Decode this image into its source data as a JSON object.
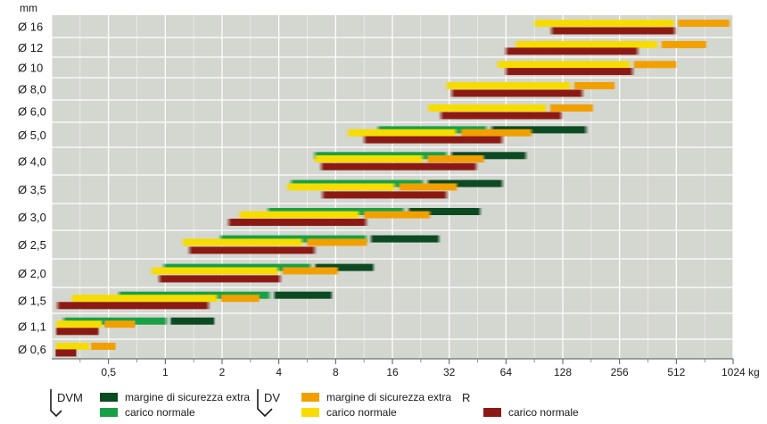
{
  "chart_data": {
    "type": "bar",
    "orientation": "horizontal-range",
    "y_unit_label": "mm",
    "x_unit_label": "kg",
    "x_scale": "log2",
    "xlim": [
      0.25,
      1024
    ],
    "x_ticks": [
      {
        "value": 0.5,
        "label": "0,5"
      },
      {
        "value": 1,
        "label": "1"
      },
      {
        "value": 2,
        "label": "2"
      },
      {
        "value": 4,
        "label": "4"
      },
      {
        "value": 8,
        "label": "8"
      },
      {
        "value": 16,
        "label": "16"
      },
      {
        "value": 32,
        "label": "32"
      },
      {
        "value": 64,
        "label": "64"
      },
      {
        "value": 128,
        "label": "128"
      },
      {
        "value": 256,
        "label": "256"
      },
      {
        "value": 512,
        "label": "512"
      },
      {
        "value": 1024,
        "label": "1024 kg"
      }
    ],
    "grid": true,
    "categories": [
      "Ø 16",
      "Ø 12",
      "Ø 10",
      "Ø 8,0",
      "Ø 6,0",
      "Ø 5,0",
      "Ø 4,0",
      "Ø 3,5",
      "Ø 3,0",
      "Ø 2,5",
      "Ø 2,0",
      "Ø 1,5",
      "Ø 1,1",
      "Ø 0,6"
    ],
    "series": [
      {
        "code": "DVM",
        "role": "carico normale",
        "color": "#18a046",
        "ranges": [
          null,
          null,
          null,
          null,
          null,
          [
            13,
            52
          ],
          [
            6,
            32
          ],
          [
            4.5,
            24
          ],
          [
            3.4,
            19
          ],
          [
            1.9,
            12
          ],
          [
            0.95,
            6.1
          ],
          [
            0.55,
            3.7
          ],
          [
            0.28,
            1.05
          ],
          null
        ]
      },
      {
        "code": "DVM",
        "role": "margine di sicurezza extra",
        "color": "#0c4a22",
        "ranges": [
          null,
          null,
          null,
          null,
          null,
          [
            52,
            176
          ],
          [
            32,
            84
          ],
          [
            24,
            63
          ],
          [
            19,
            48
          ],
          [
            12,
            29
          ],
          [
            6.1,
            13
          ],
          [
            3.7,
            7.8
          ],
          [
            1.05,
            1.85
          ],
          null
        ]
      },
      {
        "code": "DV",
        "role": "carico normale",
        "color": "#f6dc00",
        "ranges": [
          [
            88,
            512
          ],
          [
            70,
            420
          ],
          [
            56,
            300
          ],
          [
            30,
            145
          ],
          [
            24,
            108
          ],
          [
            9,
            36
          ],
          [
            6,
            24
          ],
          [
            4.3,
            17
          ],
          [
            2.4,
            11
          ],
          [
            1.2,
            5.5
          ],
          [
            0.82,
            4.1
          ],
          [
            0.31,
            1.95
          ],
          [
            0.26,
            0.47
          ],
          [
            0.26,
            0.4
          ]
        ]
      },
      {
        "code": "DV",
        "role": "margine di sicurezza extra",
        "color": "#f2a000",
        "ranges": [
          [
            512,
            1000
          ],
          [
            420,
            750
          ],
          [
            300,
            520
          ],
          [
            145,
            245
          ],
          [
            108,
            188
          ],
          [
            36,
            90
          ],
          [
            24,
            50
          ],
          [
            17,
            36
          ],
          [
            11,
            26
          ],
          [
            5.5,
            12
          ],
          [
            4.1,
            8.4
          ],
          [
            1.95,
            3.2
          ],
          [
            0.47,
            0.7
          ],
          [
            0.4,
            0.55
          ]
        ]
      },
      {
        "code": "R",
        "role": "carico normale",
        "color": "#8c1a14",
        "ranges": [
          [
            108,
            520
          ],
          [
            62,
            330
          ],
          [
            62,
            310
          ],
          [
            32,
            168
          ],
          [
            28,
            130
          ],
          [
            11,
            63
          ],
          [
            6.5,
            46
          ],
          [
            6.6,
            32
          ],
          [
            2.1,
            12
          ],
          [
            1.3,
            6.4
          ],
          [
            0.9,
            4.2
          ],
          [
            0.26,
            1.75
          ],
          [
            0.26,
            0.45
          ],
          [
            0.26,
            0.34
          ]
        ]
      }
    ]
  },
  "legend": {
    "dvm": {
      "code": "DVM",
      "dark_label": "margine di sicurezza extra",
      "light_label": "carico normale"
    },
    "dv": {
      "code": "DV",
      "dark_label": "margine di sicurezza extra",
      "light_label": "carico normale"
    },
    "r": {
      "code": "R",
      "label": "carico normale"
    }
  }
}
